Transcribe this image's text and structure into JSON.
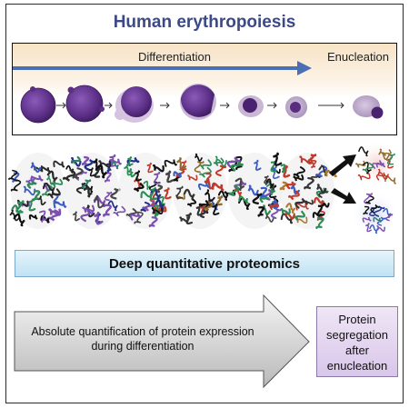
{
  "title": "Human erythropoiesis",
  "differentiation_label": "Differentiation",
  "enucleation_label": "Enucleation",
  "proteomics_label": "Deep quantitative proteomics",
  "quantification_text": "Absolute quantification of protein expression during differentiation",
  "segregation_text": "Protein segregation after enucleation",
  "colors": {
    "title": "#3b4a85",
    "arrow_blue": "#4a6fb5",
    "cell_purple": "#6b3c94",
    "proteomics_fill": "#bfe2f4",
    "segregation_fill": "#d9c6ea"
  }
}
